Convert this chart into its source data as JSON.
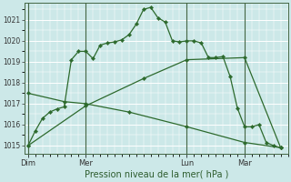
{
  "bg_color": "#cce8e8",
  "grid_color": "#ffffff",
  "line_color": "#2d6a2d",
  "x_tick_labels": [
    "Dim",
    "Mer",
    "Lun",
    "Mar"
  ],
  "x_tick_positions": [
    0,
    8,
    22,
    30
  ],
  "xlabel": "Pression niveau de la mer( hPa )",
  "ylim": [
    1014.6,
    1021.8
  ],
  "yticks": [
    1015,
    1016,
    1017,
    1018,
    1019,
    1020,
    1021
  ],
  "xlim": [
    -0.5,
    36
  ],
  "vline_positions": [
    0,
    8,
    22,
    30
  ],
  "line1_x": [
    0,
    1,
    2,
    3,
    4,
    5,
    6,
    7,
    8,
    9,
    10,
    11,
    12,
    13,
    14,
    15,
    16,
    17,
    18,
    19,
    20,
    21,
    22,
    23,
    24,
    25,
    26,
    27,
    28,
    29,
    30,
    31,
    32,
    33,
    34,
    35
  ],
  "line1_y": [
    1015.0,
    1015.7,
    1016.3,
    1016.6,
    1016.75,
    1016.85,
    1019.1,
    1019.5,
    1019.5,
    1019.15,
    1019.8,
    1019.9,
    1019.95,
    1020.05,
    1020.3,
    1020.8,
    1021.5,
    1021.6,
    1021.1,
    1020.9,
    1020.0,
    1019.95,
    1020.0,
    1020.0,
    1019.9,
    1019.2,
    1019.2,
    1019.25,
    1018.3,
    1016.8,
    1015.9,
    1015.9,
    1016.0,
    1015.15,
    1015.0,
    1014.9
  ],
  "line2_x": [
    0,
    8,
    16,
    22,
    30,
    35
  ],
  "line2_y": [
    1015.0,
    1016.9,
    1018.2,
    1019.1,
    1019.2,
    1014.9
  ],
  "line3_x": [
    0,
    5,
    8,
    14,
    22,
    30,
    35
  ],
  "line3_y": [
    1017.5,
    1017.1,
    1017.0,
    1016.6,
    1015.9,
    1015.15,
    1014.9
  ]
}
